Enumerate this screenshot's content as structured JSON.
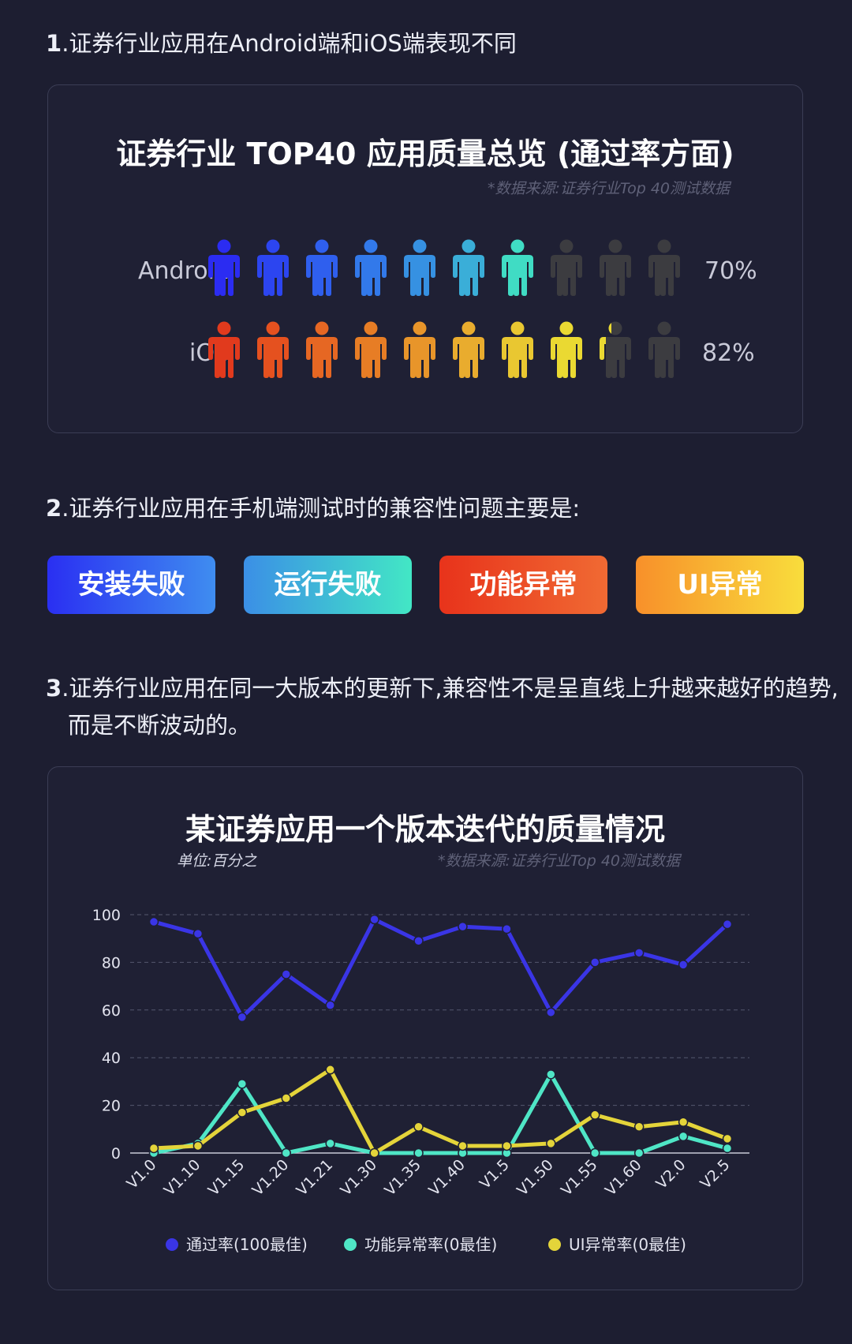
{
  "section1": {
    "num": "1",
    "text": ".证券行业应用在Android端和iOS端表现不同"
  },
  "card1": {
    "title": "证券行业 TOP40 应用质量总览 (通过率方面)",
    "source": "*数据来源:证券行业Top 40测试数据",
    "rows": [
      {
        "label": "Android",
        "percent_text": "70%",
        "pass_rate": 0.7,
        "colors": [
          "#2b2cf2",
          "#2c45f0",
          "#2f5fee",
          "#3279ea",
          "#3691e2",
          "#3aaed8",
          "#40dcc4"
        ]
      },
      {
        "label": "iOS",
        "percent_text": "82%",
        "pass_rate": 0.82,
        "colors": [
          "#e13a1d",
          "#e5511f",
          "#e66723",
          "#e77d25",
          "#e8952a",
          "#e9ac2e",
          "#e9c731",
          "#ead932"
        ]
      }
    ],
    "inactive_color": "#3c3c40",
    "icon": "person-icon"
  },
  "section2": {
    "num": "2",
    "text": ".证券行业应用在手机端测试时的兼容性问题主要是:"
  },
  "tags": [
    "安装失败",
    "运行失败",
    "功能异常",
    "UI异常"
  ],
  "section3": {
    "num": "3",
    "text": ".证券行业应用在同一大版本的更新下,兼容性不是呈直线上升越来越好的趋势,而是不断波动的。"
  },
  "card2": {
    "title": "某证券应用一个版本迭代的质量情况",
    "unit": "单位:百分之",
    "source": "*数据来源:证券行业Top 40测试数据"
  },
  "chart_data": {
    "type": "line",
    "title": "某证券应用一个版本迭代的质量情况",
    "x": [
      "V1.0",
      "V1.10",
      "V1.15",
      "V1.20",
      "V1.21",
      "V1.30",
      "V1.35",
      "V1.40",
      "V1.5",
      "V1.50",
      "V1.55",
      "V1.60",
      "V2.0",
      "V2.5"
    ],
    "yticks": [
      0,
      20,
      40,
      60,
      80,
      100
    ],
    "ylim": [
      0,
      100
    ],
    "grid": true,
    "legend_position": "bottom",
    "series": [
      {
        "name": "通过率(100最佳)",
        "color": "#3a35e6",
        "values": [
          97,
          92,
          57,
          75,
          62,
          98,
          89,
          95,
          94,
          59,
          80,
          84,
          79,
          96
        ]
      },
      {
        "name": "功能异常率(0最佳)",
        "color": "#4fe6c6",
        "values": [
          0,
          4,
          29,
          0,
          4,
          0,
          0,
          0,
          0,
          33,
          0,
          0,
          7,
          2
        ]
      },
      {
        "name": "UI异常率(0最佳)",
        "color": "#e4d43a",
        "values": [
          2,
          3,
          17,
          23,
          35,
          0,
          11,
          3,
          3,
          4,
          16,
          11,
          13,
          6
        ]
      }
    ]
  }
}
